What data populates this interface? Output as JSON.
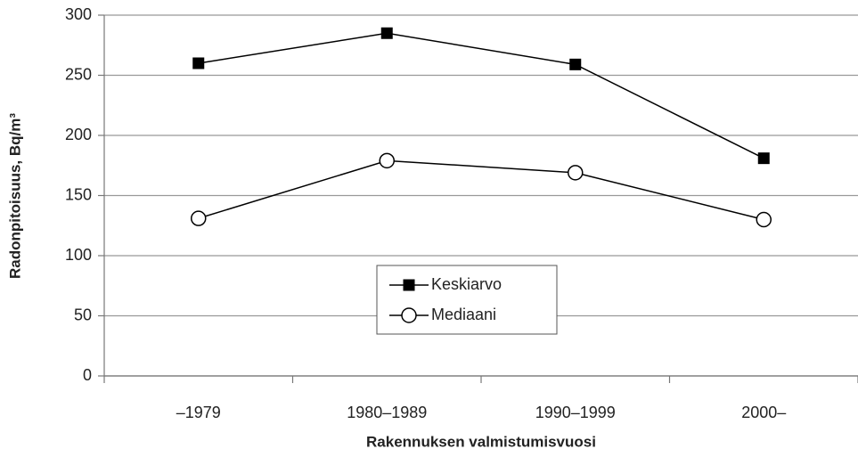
{
  "chart_data": {
    "type": "line",
    "x_label": "Rakennuksen valmistumisvuosi",
    "y_label": "Radonpitoisuus, Bq/m³",
    "categories": [
      "–1979",
      "1980–1989",
      "1990–1999",
      "2000–"
    ],
    "series": [
      {
        "name": "Keskiarvo",
        "color": "#000000",
        "marker": "square",
        "values": [
          260,
          285,
          259,
          181
        ]
      },
      {
        "name": "Mediaani",
        "color": "#000000",
        "marker": "circle",
        "values": [
          131,
          179,
          169,
          130
        ]
      }
    ],
    "ylim": [
      0,
      300
    ],
    "yticks": [
      0,
      50,
      100,
      150,
      200,
      250,
      300
    ],
    "grid": true,
    "legend": "center"
  }
}
